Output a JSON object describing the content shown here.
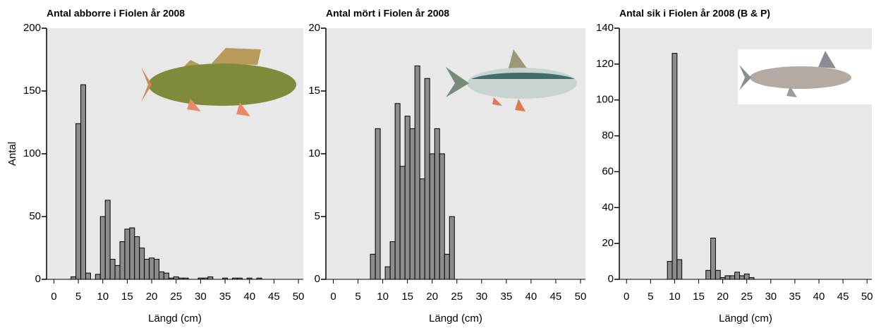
{
  "chart_data": [
    {
      "type": "histogram",
      "title": "Antal abborre i Fiolen år 2008",
      "xlabel": "Längd (cm)",
      "ylabel": "Antal",
      "bins": [
        3.5,
        4.5,
        5.5,
        6.5,
        7.5,
        8.5,
        9.5,
        10.5,
        11.5,
        12.5,
        13.5,
        14.5,
        15.5,
        16.5,
        17.5,
        18.5,
        19.5,
        20.5,
        21.5,
        22.5,
        23.5,
        24.5,
        25.5,
        26.5,
        27.5,
        28.5,
        29.5,
        30.5,
        31.5,
        32.5,
        33.5,
        34.5,
        35.5,
        36.5,
        37.5,
        38.5,
        39.5,
        40.5,
        41.5,
        42.5
      ],
      "values": [
        2,
        124,
        155,
        5,
        0,
        4,
        50,
        63,
        16,
        11,
        30,
        40,
        41,
        34,
        25,
        16,
        17,
        16,
        6,
        5,
        1,
        2,
        1,
        1,
        0,
        0,
        1,
        1,
        2,
        0,
        0,
        1,
        0,
        1,
        1,
        0,
        1,
        0,
        1
      ],
      "color": "#8c8c8c",
      "xlim": [
        -1.5,
        51
      ],
      "xticks": [
        0,
        5,
        10,
        15,
        20,
        25,
        30,
        35,
        40,
        45,
        50
      ],
      "ylim": [
        0,
        200
      ],
      "yticks": [
        0,
        50,
        100,
        150,
        200
      ]
    },
    {
      "type": "histogram",
      "title": "Antal mört i Fiolen år 2008",
      "xlabel": "Längd (cm)",
      "bins": [
        7.5,
        8.5,
        9.5,
        10.5,
        11.5,
        12.5,
        13.5,
        14.5,
        15.5,
        16.5,
        17.5,
        18.5,
        19.5,
        20.5,
        21.5,
        22.5,
        23.5,
        24.5
      ],
      "values": [
        2,
        12,
        0,
        1,
        3,
        14,
        9,
        13,
        12,
        17,
        8,
        16,
        10,
        12,
        10,
        2,
        5
      ],
      "color": "#8c8c8c",
      "xlim": [
        -1.5,
        51
      ],
      "xticks": [
        0,
        5,
        10,
        15,
        20,
        25,
        30,
        35,
        40,
        45,
        50
      ],
      "ylim": [
        0,
        20
      ],
      "yticks": [
        0,
        5,
        10,
        15,
        20
      ]
    },
    {
      "type": "histogram",
      "title": "Antal sik i Fiolen år 2008 (B & P)",
      "xlabel": "Längd (cm)",
      "bins": [
        8.5,
        9.5,
        10.5,
        11.5,
        12.5,
        13.5,
        14.5,
        15.5,
        16.5,
        17.5,
        18.5,
        19.5,
        20.5,
        21.5,
        22.5,
        23.5,
        24.5,
        25.5,
        26.5
      ],
      "values": [
        10,
        126,
        11,
        0,
        0,
        0,
        0,
        0,
        5,
        23,
        5,
        1,
        2,
        2,
        4,
        2,
        3,
        1
      ],
      "color": "#8c8c8c",
      "xlim": [
        -1.5,
        51
      ],
      "xticks": [
        0,
        5,
        10,
        15,
        20,
        25,
        30,
        35,
        40,
        45,
        50
      ],
      "ylim": [
        0,
        140
      ],
      "yticks": [
        0,
        20,
        40,
        60,
        80,
        100,
        120,
        140
      ]
    }
  ]
}
